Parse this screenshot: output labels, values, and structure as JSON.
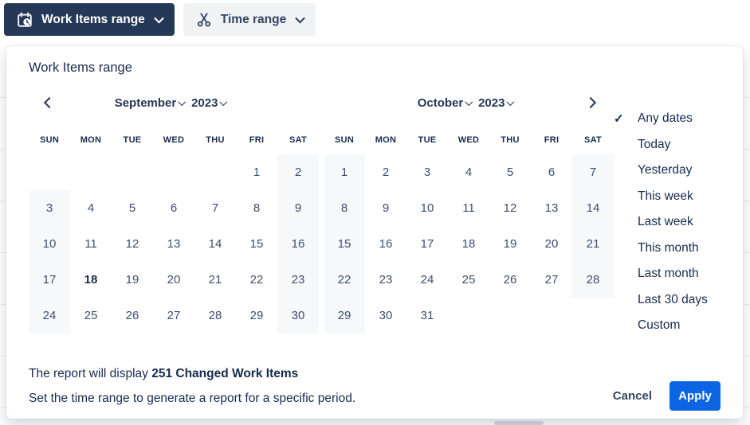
{
  "toolbar": {
    "work_items_button": {
      "label": "Work Items range"
    },
    "time_range_button": {
      "label": "Time range"
    }
  },
  "panel": {
    "title": "Work Items range",
    "calendar": {
      "months": [
        {
          "name": "September",
          "year": "2023",
          "dow": [
            "SUN",
            "MON",
            "TUE",
            "WED",
            "THU",
            "FRI",
            "SAT"
          ],
          "weeks": [
            [
              "",
              "",
              "",
              "",
              "",
              "1",
              "2"
            ],
            [
              "3",
              "4",
              "5",
              "6",
              "7",
              "8",
              "9"
            ],
            [
              "10",
              "11",
              "12",
              "13",
              "14",
              "15",
              "16"
            ],
            [
              "17",
              "18",
              "19",
              "20",
              "21",
              "22",
              "23"
            ],
            [
              "24",
              "25",
              "26",
              "27",
              "28",
              "29",
              "30"
            ]
          ],
          "bold_day": "18"
        },
        {
          "name": "October",
          "year": "2023",
          "dow": [
            "SUN",
            "MON",
            "TUE",
            "WED",
            "THU",
            "FRI",
            "SAT"
          ],
          "weeks": [
            [
              "1",
              "2",
              "3",
              "4",
              "5",
              "6",
              "7"
            ],
            [
              "8",
              "9",
              "10",
              "11",
              "12",
              "13",
              "14"
            ],
            [
              "15",
              "16",
              "17",
              "18",
              "19",
              "20",
              "21"
            ],
            [
              "22",
              "23",
              "24",
              "25",
              "26",
              "27",
              "28"
            ],
            [
              "29",
              "30",
              "31",
              "",
              "",
              "",
              ""
            ]
          ]
        }
      ]
    },
    "presets": {
      "check_icon": "✓",
      "items": [
        {
          "label": "Any dates",
          "checked": true
        },
        {
          "label": "Today"
        },
        {
          "label": "Yesterday"
        },
        {
          "label": "This week"
        },
        {
          "label": "Last week"
        },
        {
          "label": "This month"
        },
        {
          "label": "Last month"
        },
        {
          "label": "Last 30 days"
        },
        {
          "label": "Custom"
        }
      ]
    },
    "footer": {
      "summary_prefix": "The report will display ",
      "summary_bold": "251 Changed Work Items",
      "description": "Set the time range to generate a report for a specific period.",
      "cancel_label": "Cancel",
      "apply_label": "Apply"
    }
  },
  "colors": {
    "dark_button_bg": "#253858",
    "subtle_button_bg": "#F1F2F4",
    "text_navy": "#172B4D",
    "day_number": "#3E4F6E",
    "weekend_bg": "#F7F8F9",
    "apply_blue": "#0C66E4"
  }
}
